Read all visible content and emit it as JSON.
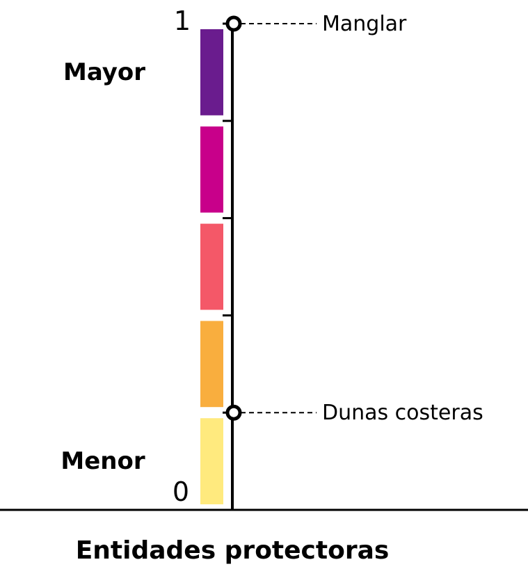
{
  "chart_data": {
    "type": "bar",
    "xlabel": "Entidades protectoras",
    "ylim": [
      0,
      1
    ],
    "y_tick_labels": [
      "0",
      "1"
    ],
    "level_labels": {
      "high": "Mayor",
      "low": "Menor"
    },
    "segments": [
      {
        "from": 0.0,
        "to": 0.2,
        "color": "#FFEA7E"
      },
      {
        "from": 0.2,
        "to": 0.4,
        "color": "#F9AE3E"
      },
      {
        "from": 0.4,
        "to": 0.6,
        "color": "#F45868"
      },
      {
        "from": 0.6,
        "to": 0.8,
        "color": "#C8008A"
      },
      {
        "from": 0.8,
        "to": 1.0,
        "color": "#6A1C8E"
      }
    ],
    "markers": [
      {
        "label": "Manglar",
        "value": 1.0
      },
      {
        "label": "Dunas costeras",
        "value": 0.2
      }
    ]
  }
}
